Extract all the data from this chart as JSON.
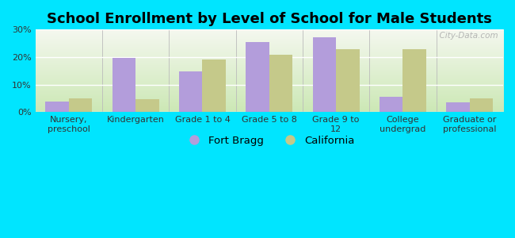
{
  "title": "School Enrollment by Level of School for Male Students",
  "categories": [
    "Nursery,\npreschool",
    "Kindergarten",
    "Grade 1 to 4",
    "Grade 5 to 8",
    "Grade 9 to\n12",
    "College\nundergrad",
    "Graduate or\nprofessional"
  ],
  "fort_bragg": [
    4.0,
    19.7,
    14.8,
    25.5,
    27.2,
    5.5,
    3.5
  ],
  "california": [
    5.0,
    4.8,
    19.2,
    20.8,
    22.8,
    22.8,
    5.0
  ],
  "fort_bragg_color": "#b39ddb",
  "california_color": "#c5c98a",
  "background_outer": "#00e5ff",
  "background_top": "#f5f8f0",
  "background_bottom": "#d8eecc",
  "ylim": [
    0,
    30
  ],
  "yticks": [
    0,
    10,
    20,
    30
  ],
  "ytick_labels": [
    "0%",
    "10%",
    "20%",
    "30%"
  ],
  "bar_width": 0.35,
  "title_fontsize": 13,
  "tick_fontsize": 8,
  "legend_fontsize": 9.5,
  "watermark": "  City-Data.com"
}
